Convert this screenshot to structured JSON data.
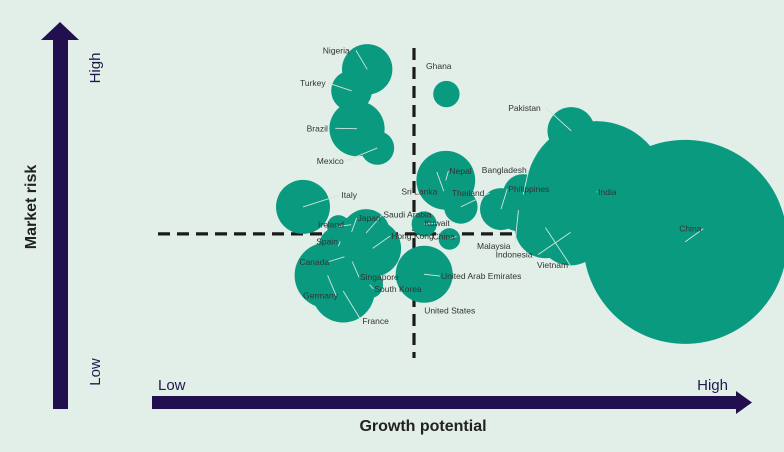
{
  "colors": {
    "background": "#e1efe8",
    "bubble": "#0a9a80",
    "axis": "#22104e",
    "divider": "#1b1b1b",
    "leader": "#cfe6dc",
    "label": "#333333"
  },
  "chart_data": {
    "type": "scatter",
    "title": "",
    "xlabel": "Growth potential",
    "ylabel": "Market risk",
    "x_end_labels": {
      "low": "Low",
      "high": "High"
    },
    "y_end_labels": {
      "low": "Low",
      "high": "High"
    },
    "xlim": [
      0,
      100
    ],
    "ylim": [
      0,
      100
    ],
    "divider": {
      "x": 44,
      "y": 44
    },
    "grid": false,
    "legend": "none",
    "points": [
      {
        "name": "Nigeria",
        "x": 36.2,
        "y": 89.2,
        "size": 8.4
      },
      {
        "name": "Turkey",
        "x": 33.6,
        "y": 83.3,
        "size": 6.8
      },
      {
        "name": "Ghana",
        "x": 49.4,
        "y": 82.4,
        "size": 4.4
      },
      {
        "name": "Pakistan",
        "x": 70.2,
        "y": 72.3,
        "size": 7.9
      },
      {
        "name": "Brazil",
        "x": 34.5,
        "y": 72.9,
        "size": 9.2
      },
      {
        "name": "Mexico",
        "x": 37.9,
        "y": 67.6,
        "size": 5.6
      },
      {
        "name": "Nepal",
        "x": 49.3,
        "y": 58.7,
        "size": 9.8
      },
      {
        "name": "Sri Lanka",
        "x": 47.8,
        "y": 61.0,
        "size": 4.3
      },
      {
        "name": "Bangladesh",
        "x": 62.2,
        "y": 54.8,
        "size": 6.8
      },
      {
        "name": "India",
        "x": 74.4,
        "y": 55.6,
        "size": 23.5
      },
      {
        "name": "Thailand",
        "x": 51.8,
        "y": 51.4,
        "size": 5.6
      },
      {
        "name": "Philippines",
        "x": 58.5,
        "y": 50.8,
        "size": 7.0
      },
      {
        "name": "Malaysia",
        "x": 61.4,
        "y": 50.5,
        "size": 7.0
      },
      {
        "name": "Italy",
        "x": 25.5,
        "y": 51.4,
        "size": 9.0
      },
      {
        "name": "China",
        "x": 89.2,
        "y": 41.8,
        "size": 34.0
      },
      {
        "name": "Indonesia",
        "x": 70.1,
        "y": 44.4,
        "size": 11.0
      },
      {
        "name": "Japan",
        "x": 33.6,
        "y": 44.5,
        "size": 5.0
      },
      {
        "name": "Ireland",
        "x": 31.4,
        "y": 46.0,
        "size": 3.8
      },
      {
        "name": "Saudi Arabia",
        "x": 36.0,
        "y": 44.2,
        "size": 8.0
      },
      {
        "name": "Kuwait",
        "x": 45.7,
        "y": 46.7,
        "size": 4.2
      },
      {
        "name": "China",
        "x": 49.9,
        "y": 42.6,
        "size": 3.6
      },
      {
        "name": "Hong Kong",
        "x": 37.1,
        "y": 40.0,
        "size": 9.5
      },
      {
        "name": "Spain",
        "x": 31.4,
        "y": 40.6,
        "size": 6.5
      },
      {
        "name": "Canada",
        "x": 32.4,
        "y": 37.7,
        "size": 6.4
      },
      {
        "name": "Singapore",
        "x": 33.7,
        "y": 36.4,
        "size": 4.5
      },
      {
        "name": "United Arab Emirates",
        "x": 45.7,
        "y": 32.9,
        "size": 9.5
      },
      {
        "name": "Germany",
        "x": 29.6,
        "y": 32.6,
        "size": 11.0
      },
      {
        "name": "South Korea",
        "x": 36.6,
        "y": 30.0,
        "size": 4.5
      },
      {
        "name": "France",
        "x": 32.2,
        "y": 28.3,
        "size": 10.5
      },
      {
        "name": "Vietnam",
        "x": 65.9,
        "y": 45.7,
        "size": 10.2
      },
      {
        "name": "United States",
        "x": 44.0,
        "y": 33.0,
        "size": 0
      }
    ],
    "labels": [
      {
        "text": "Nigeria",
        "x": 28.8,
        "y": 94.4,
        "anchor": "start",
        "point": 0
      },
      {
        "text": "Turkey",
        "x": 25.0,
        "y": 85.4,
        "anchor": "start",
        "point": 1
      },
      {
        "text": "Ghana",
        "x": 46.0,
        "y": 90.1,
        "anchor": "start",
        "point": -1
      },
      {
        "text": "Pakistan",
        "x": 59.7,
        "y": 78.6,
        "anchor": "start",
        "point": 3
      },
      {
        "text": "Brazil",
        "x": 26.1,
        "y": 73.0,
        "anchor": "start",
        "point": 4
      },
      {
        "text": "Mexico",
        "x": 27.8,
        "y": 64.0,
        "anchor": "start",
        "point": 5
      },
      {
        "text": "Nepal",
        "x": 49.9,
        "y": 61.3,
        "anchor": "start",
        "point": 6
      },
      {
        "text": "Sri Lanka",
        "x": 41.9,
        "y": 55.7,
        "anchor": "start",
        "point": 7
      },
      {
        "text": "Bangladesh",
        "x": 55.3,
        "y": 61.6,
        "anchor": "start",
        "point": 8
      },
      {
        "text": "India",
        "x": 74.7,
        "y": 55.5,
        "anchor": "start",
        "point": 9
      },
      {
        "text": "Thailand",
        "x": 50.3,
        "y": 55.2,
        "anchor": "start",
        "point": 10
      },
      {
        "text": "Philippines",
        "x": 59.7,
        "y": 56.3,
        "anchor": "start",
        "point": 11
      },
      {
        "text": "Malaysia",
        "x": 54.5,
        "y": 40.7,
        "anchor": "start",
        "point": 12
      },
      {
        "text": "Italy",
        "x": 31.9,
        "y": 54.7,
        "anchor": "start",
        "point": 13
      },
      {
        "text": "China",
        "x": 88.2,
        "y": 45.4,
        "anchor": "start",
        "point": 14
      },
      {
        "text": "Indonesia",
        "x": 57.6,
        "y": 38.3,
        "anchor": "start",
        "point": 15
      },
      {
        "text": "Japan",
        "x": 34.6,
        "y": 48.3,
        "anchor": "start",
        "point": 16
      },
      {
        "text": "Ireland",
        "x": 28.0,
        "y": 46.5,
        "anchor": "start",
        "point": 17
      },
      {
        "text": "Saudi Arabia",
        "x": 38.9,
        "y": 49.3,
        "anchor": "start",
        "point": 18
      },
      {
        "text": "Kuwait",
        "x": 45.7,
        "y": 47.0,
        "anchor": "start",
        "point": 19
      },
      {
        "text": "China",
        "x": 47.1,
        "y": 43.3,
        "anchor": "start",
        "point": 20
      },
      {
        "text": "Hong Kong",
        "x": 40.2,
        "y": 43.4,
        "anchor": "start",
        "point": 21
      },
      {
        "text": "Spain",
        "x": 27.7,
        "y": 41.9,
        "anchor": "start",
        "point": 22
      },
      {
        "text": "Canada",
        "x": 24.9,
        "y": 36.3,
        "anchor": "start",
        "point": 23
      },
      {
        "text": "Singapore",
        "x": 35.0,
        "y": 32.1,
        "anchor": "start",
        "point": 24
      },
      {
        "text": "United Arab Emirates",
        "x": 48.5,
        "y": 32.4,
        "anchor": "start",
        "point": 25
      },
      {
        "text": "Germany",
        "x": 25.5,
        "y": 27.0,
        "anchor": "start",
        "point": 26
      },
      {
        "text": "South Korea",
        "x": 37.4,
        "y": 28.9,
        "anchor": "start",
        "point": 27
      },
      {
        "text": "France",
        "x": 35.4,
        "y": 20.1,
        "anchor": "start",
        "point": 28
      },
      {
        "text": "Vietnam",
        "x": 64.5,
        "y": 35.4,
        "anchor": "start",
        "point": 29
      },
      {
        "text": "United States",
        "x": 45.7,
        "y": 23.0,
        "anchor": "start",
        "point": -1
      }
    ]
  }
}
